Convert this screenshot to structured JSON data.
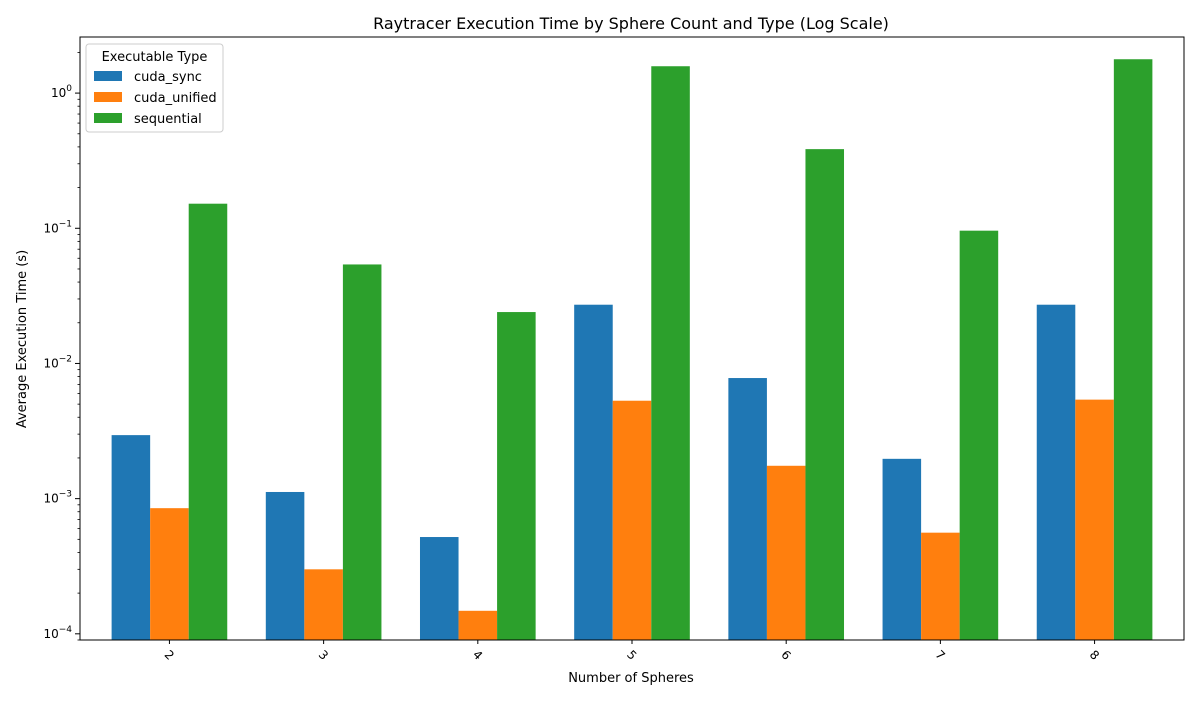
{
  "chart_data": {
    "type": "bar",
    "title": "Raytracer Execution Time by Sphere Count and Type (Log Scale)",
    "xlabel": "Number of Spheres",
    "ylabel": "Average Execution Time (s)",
    "yscale": "log",
    "ylim": [
      9e-05,
      2.6
    ],
    "y_ticks": [
      {
        "value": 0.0001,
        "base": "10",
        "exp": "−4"
      },
      {
        "value": 0.001,
        "base": "10",
        "exp": "−3"
      },
      {
        "value": 0.01,
        "base": "10",
        "exp": "−2"
      },
      {
        "value": 0.1,
        "base": "10",
        "exp": "−1"
      },
      {
        "value": 1,
        "base": "10",
        "exp": "0"
      }
    ],
    "categories": [
      "2",
      "3",
      "4",
      "5",
      "6",
      "7",
      "8"
    ],
    "x_tick_rotation": 45,
    "legend": {
      "title": "Executable Type",
      "position": "top-left"
    },
    "grid": false,
    "series": [
      {
        "name": "cuda_sync",
        "color": "#1f77b4",
        "values": [
          0.00295,
          0.00112,
          0.00052,
          0.0272,
          0.0078,
          0.00197,
          0.0272
        ]
      },
      {
        "name": "cuda_unified",
        "color": "#ff7f0e",
        "values": [
          0.00085,
          0.0003,
          0.000148,
          0.0053,
          0.00175,
          0.00056,
          0.0054
        ]
      },
      {
        "name": "sequential",
        "color": "#2ca02c",
        "values": [
          0.152,
          0.054,
          0.024,
          1.58,
          0.385,
          0.096,
          1.78
        ]
      }
    ]
  }
}
